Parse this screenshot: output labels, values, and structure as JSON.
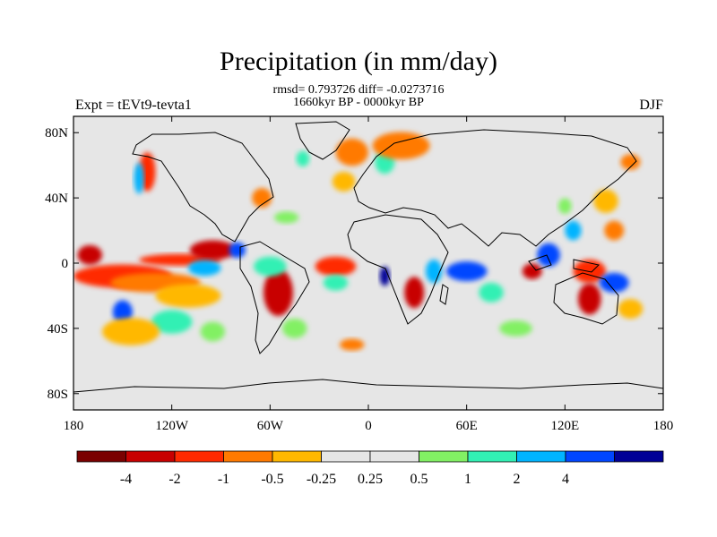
{
  "chart_data": {
    "type": "heatmap",
    "title": "Precipitation (in mm/day)",
    "stats_line1": "rmsd= 0.793726 diff= -0.0273716",
    "stats_line2": "1660kyr BP - 0000kyr BP",
    "left_label": "Expt = tEVt9-tevta1",
    "right_label": "DJF",
    "projection": "cylindrical equidistant",
    "xlim": [
      -180,
      180
    ],
    "ylim": [
      -90,
      90
    ],
    "y_ticks": [
      {
        "value": 80,
        "label": "80N"
      },
      {
        "value": 40,
        "label": "40N"
      },
      {
        "value": 0,
        "label": "0"
      },
      {
        "value": -40,
        "label": "40S"
      },
      {
        "value": -80,
        "label": "80S"
      }
    ],
    "x_ticks": [
      {
        "value": -180,
        "label": "180"
      },
      {
        "value": -120,
        "label": "120W"
      },
      {
        "value": -60,
        "label": "60W"
      },
      {
        "value": 0,
        "label": "0"
      },
      {
        "value": 60,
        "label": "60E"
      },
      {
        "value": 120,
        "label": "120E"
      },
      {
        "value": 180,
        "label": "180"
      }
    ],
    "colorbar": {
      "colors": [
        "#7a0000",
        "#c80000",
        "#ff2a00",
        "#ff7a00",
        "#ffb800",
        "#e6e6e6",
        "#e6e6e6",
        "#82f064",
        "#32f0b4",
        "#00b4ff",
        "#0046ff",
        "#000096"
      ],
      "labels": [
        "-4",
        "-2",
        "-1",
        "-0.5",
        "-0.25",
        "0.25",
        "0.5",
        "1",
        "2",
        "4"
      ]
    },
    "regions": [
      {
        "lon": -150,
        "lat": -8,
        "w": 60,
        "h": 6,
        "level": 2
      },
      {
        "lon": -130,
        "lat": -12,
        "w": 55,
        "h": 5,
        "level": 3
      },
      {
        "lon": -115,
        "lat": 2,
        "w": 50,
        "h": 3,
        "level": 2
      },
      {
        "lon": -110,
        "lat": -20,
        "w": 40,
        "h": 6,
        "level": 4
      },
      {
        "lon": -150,
        "lat": -30,
        "w": 12,
        "h": 6,
        "level": 10
      },
      {
        "lon": -120,
        "lat": -36,
        "w": 25,
        "h": 6,
        "level": 8
      },
      {
        "lon": -145,
        "lat": -42,
        "w": 35,
        "h": 7,
        "level": 4
      },
      {
        "lon": -95,
        "lat": -42,
        "w": 15,
        "h": 5,
        "level": 7
      },
      {
        "lon": -135,
        "lat": 56,
        "w": 10,
        "h": 10,
        "level": 2
      },
      {
        "lon": -140,
        "lat": 52,
        "w": 6,
        "h": 8,
        "level": 9
      },
      {
        "lon": -95,
        "lat": 8,
        "w": 28,
        "h": 5,
        "level": 1
      },
      {
        "lon": -100,
        "lat": -3,
        "w": 20,
        "h": 4,
        "level": 9
      },
      {
        "lon": -80,
        "lat": 8,
        "w": 10,
        "h": 4,
        "level": 10
      },
      {
        "lon": -55,
        "lat": -18,
        "w": 18,
        "h": 12,
        "level": 1
      },
      {
        "lon": -60,
        "lat": -2,
        "w": 20,
        "h": 5,
        "level": 8
      },
      {
        "lon": -45,
        "lat": -40,
        "w": 15,
        "h": 5,
        "level": 7
      },
      {
        "lon": -65,
        "lat": 40,
        "w": 12,
        "h": 5,
        "level": 3
      },
      {
        "lon": -50,
        "lat": 28,
        "w": 15,
        "h": 3,
        "level": 7
      },
      {
        "lon": -10,
        "lat": 68,
        "w": 20,
        "h": 7,
        "level": 3
      },
      {
        "lon": 10,
        "lat": 62,
        "w": 12,
        "h": 6,
        "level": 8
      },
      {
        "lon": 20,
        "lat": 72,
        "w": 35,
        "h": 7,
        "level": 3
      },
      {
        "lon": -40,
        "lat": 64,
        "w": 8,
        "h": 4,
        "level": 8
      },
      {
        "lon": -15,
        "lat": 50,
        "w": 14,
        "h": 5,
        "level": 4
      },
      {
        "lon": -20,
        "lat": -2,
        "w": 25,
        "h": 5,
        "level": 2
      },
      {
        "lon": -20,
        "lat": -12,
        "w": 15,
        "h": 4,
        "level": 8
      },
      {
        "lon": 28,
        "lat": -18,
        "w": 12,
        "h": 8,
        "level": 1
      },
      {
        "lon": 10,
        "lat": -8,
        "w": 6,
        "h": 5,
        "level": 11
      },
      {
        "lon": 40,
        "lat": -5,
        "w": 10,
        "h": 6,
        "level": 9
      },
      {
        "lon": 60,
        "lat": -5,
        "w": 25,
        "h": 5,
        "level": 10
      },
      {
        "lon": 75,
        "lat": -18,
        "w": 15,
        "h": 5,
        "level": 8
      },
      {
        "lon": 100,
        "lat": -5,
        "w": 12,
        "h": 4,
        "level": 1
      },
      {
        "lon": 110,
        "lat": 5,
        "w": 14,
        "h": 6,
        "level": 10
      },
      {
        "lon": 135,
        "lat": -5,
        "w": 20,
        "h": 6,
        "level": 2
      },
      {
        "lon": 150,
        "lat": -12,
        "w": 18,
        "h": 5,
        "level": 10
      },
      {
        "lon": 135,
        "lat": -22,
        "w": 14,
        "h": 8,
        "level": 1
      },
      {
        "lon": 160,
        "lat": -28,
        "w": 15,
        "h": 5,
        "level": 4
      },
      {
        "lon": 125,
        "lat": 20,
        "w": 10,
        "h": 5,
        "level": 9
      },
      {
        "lon": 150,
        "lat": 20,
        "w": 12,
        "h": 5,
        "level": 3
      },
      {
        "lon": 145,
        "lat": 38,
        "w": 15,
        "h": 6,
        "level": 4
      },
      {
        "lon": 120,
        "lat": 35,
        "w": 8,
        "h": 4,
        "level": 7
      },
      {
        "lon": 160,
        "lat": 62,
        "w": 12,
        "h": 4,
        "level": 3
      },
      {
        "lon": 90,
        "lat": -40,
        "w": 20,
        "h": 4,
        "level": 7
      },
      {
        "lon": -10,
        "lat": -50,
        "w": 15,
        "h": 3,
        "level": 3
      },
      {
        "lon": -170,
        "lat": 5,
        "w": 15,
        "h": 5,
        "level": 1
      }
    ]
  }
}
